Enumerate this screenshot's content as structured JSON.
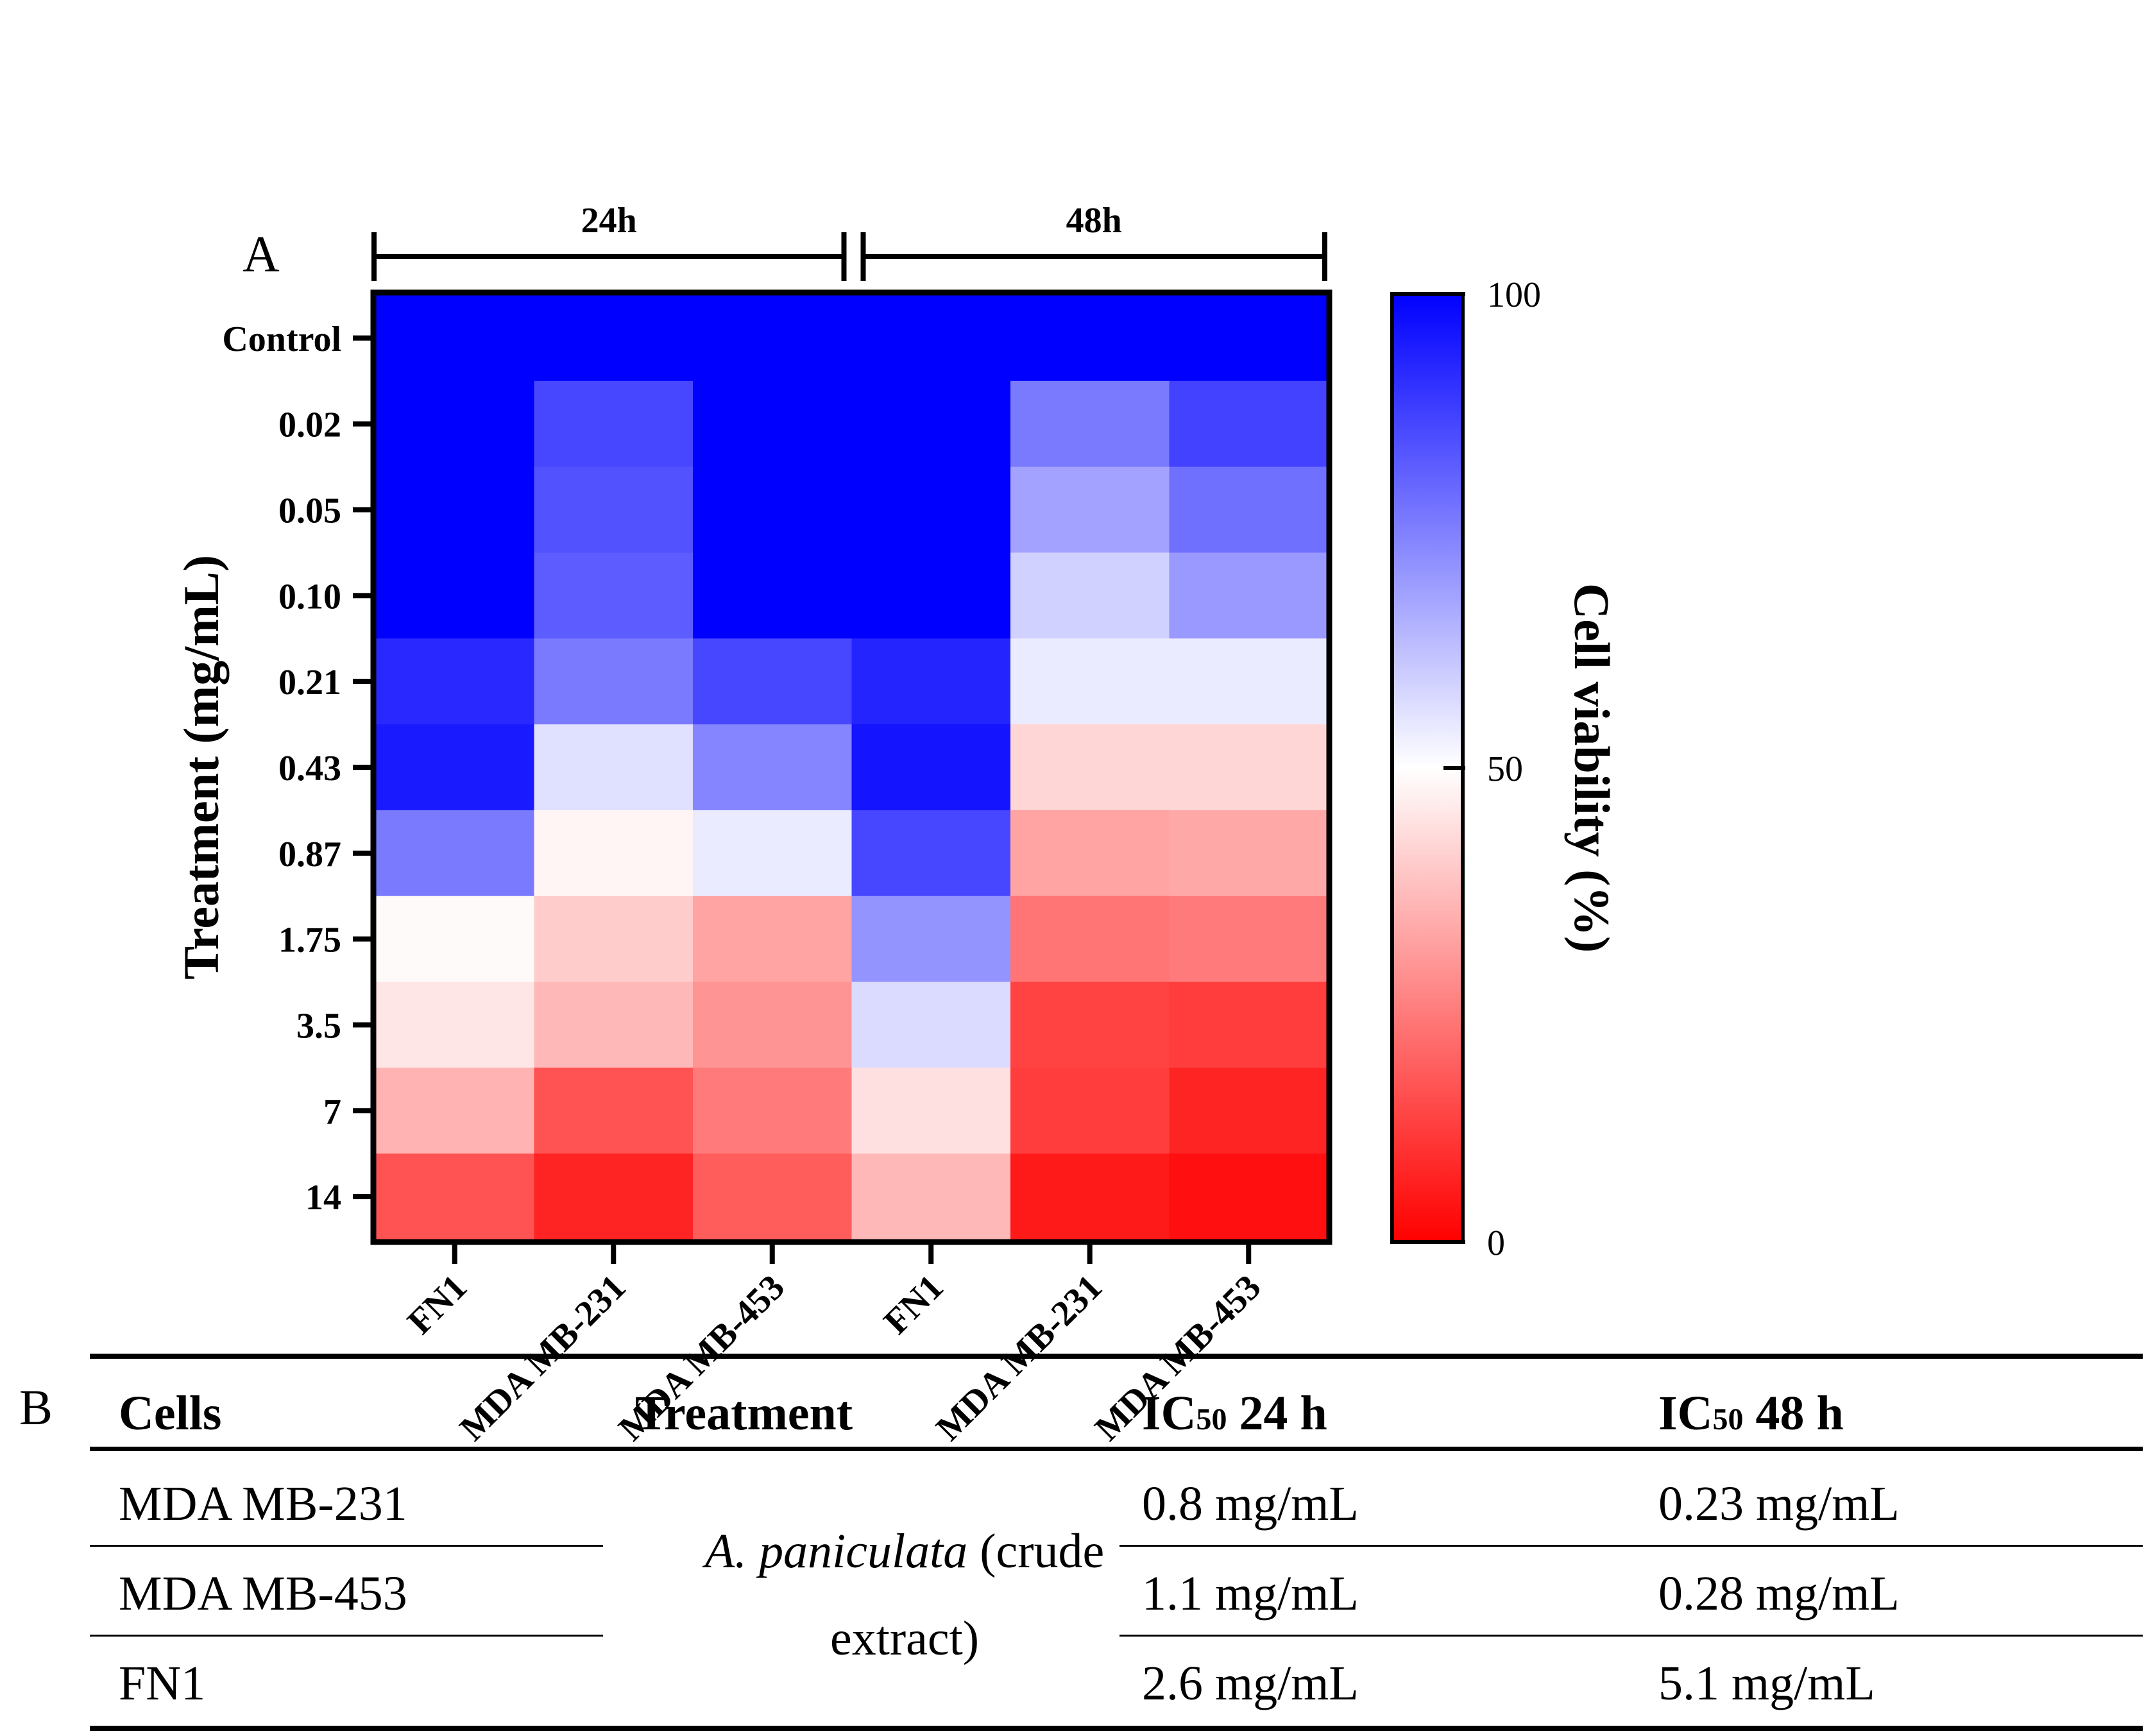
{
  "panel_a_label": "A",
  "panel_b_label": "B",
  "chart_data": {
    "type": "heatmap",
    "title": "",
    "xlabel": "",
    "ylabel": "Treatment (mg/mL)",
    "colorbar_label": "Cell viability (%)",
    "colorbar_ticks": [
      "100",
      "50",
      "0"
    ],
    "colorbar_range": [
      0,
      100
    ],
    "colors": {
      "high": "#0000ff",
      "mid": "#ffffff",
      "low": "#ff0000"
    },
    "groups": [
      {
        "label": "24h",
        "columns": [
          0,
          1,
          2
        ]
      },
      {
        "label": "48h",
        "columns": [
          3,
          4,
          5
        ]
      }
    ],
    "columns": [
      "FN1",
      "MDA MB-231",
      "MDA MB-453",
      "FN1",
      "MDA MB-231",
      "MDA MB-453"
    ],
    "rows": [
      "Control",
      "0.02",
      "0.05",
      "0.10",
      "0.21",
      "0.43",
      "0.87",
      "1.75",
      "3.5",
      "7",
      "14"
    ],
    "values": [
      [
        100,
        100,
        100,
        100,
        100,
        100
      ],
      [
        100,
        86,
        100,
        100,
        76,
        87
      ],
      [
        100,
        84,
        100,
        100,
        68,
        78
      ],
      [
        100,
        82,
        100,
        100,
        59,
        70
      ],
      [
        92,
        76,
        86,
        93,
        54,
        54
      ],
      [
        95,
        56,
        74,
        96,
        42,
        42
      ],
      [
        76,
        48,
        54,
        86,
        32,
        33
      ],
      [
        49,
        40,
        32,
        71,
        23,
        24
      ],
      [
        45,
        36,
        29,
        57,
        13,
        12
      ],
      [
        35,
        16,
        24,
        44,
        12,
        7
      ],
      [
        16,
        7,
        18,
        36,
        5,
        3
      ]
    ]
  },
  "table": {
    "headers": {
      "cells": "Cells",
      "treatment": "Treatment",
      "ic24_prefix": "IC",
      "ic24_sub": "50",
      "ic24_suffix": " 24 h",
      "ic48_prefix": "IC",
      "ic48_sub": "50",
      "ic48_suffix": " 48 h"
    },
    "treatment_italic": "A. paniculata",
    "treatment_line1_rest": " (crude",
    "treatment_line2": "extract)",
    "rows": [
      {
        "cell": "MDA MB-231",
        "ic24": "0.8 mg/mL",
        "ic48": "0.23 mg/mL"
      },
      {
        "cell": "MDA MB-453",
        "ic24": "1.1 mg/mL",
        "ic48": "0.28 mg/mL"
      },
      {
        "cell": "FN1",
        "ic24": "2.6 mg/mL",
        "ic48": "5.1 mg/mL"
      }
    ]
  }
}
